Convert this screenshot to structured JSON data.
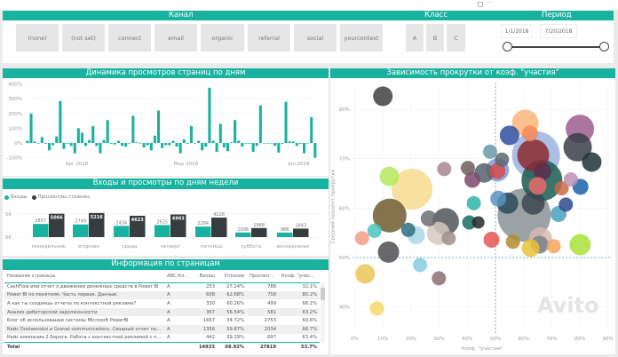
{
  "top_icons": [
    "focus-mode-icon",
    "more-options-icon"
  ],
  "filters": {
    "channel": {
      "title": "Канал",
      "options": [
        "(none)",
        "(not set)",
        "connect",
        "email",
        "organic",
        "referral",
        "social",
        "yourcontext"
      ]
    },
    "class": {
      "title": "Класс",
      "options": [
        "A",
        "B",
        "C"
      ]
    },
    "period": {
      "title": "Период",
      "start": "1/1/2018",
      "end": "7/20/2018",
      "slider_start": 0,
      "slider_end": 1
    }
  },
  "colors": {
    "accent": "#19b2a0",
    "dark": "#363c3f"
  },
  "daily_chart": {
    "title": "Динамика просмотров страниц по дням",
    "chart_data": {
      "type": "bar",
      "ylim": [
        -100,
        400
      ],
      "yticks": [
        "400%",
        "300%",
        "200%",
        "100%",
        "0%",
        "-100%"
      ],
      "xtick_labels": [
        {
          "label": "Apr 2018",
          "date": "2018-04-01"
        },
        {
          "label": "May 2018",
          "date": "2018-05-01"
        },
        {
          "label": "Jun 2018",
          "date": "2018-06-01"
        }
      ],
      "x": [
        "2018-03-18",
        "2018-03-19",
        "2018-03-20",
        "2018-03-21",
        "2018-03-22",
        "2018-03-23",
        "2018-03-24",
        "2018-03-25",
        "2018-03-26",
        "2018-03-27",
        "2018-03-28",
        "2018-03-29",
        "2018-03-30",
        "2018-03-31",
        "2018-04-01",
        "2018-04-02",
        "2018-04-03",
        "2018-04-04",
        "2018-04-05",
        "2018-04-06",
        "2018-04-07",
        "2018-04-08",
        "2018-04-09",
        "2018-04-10",
        "2018-04-11",
        "2018-04-12",
        "2018-04-13",
        "2018-04-14",
        "2018-04-15",
        "2018-04-16",
        "2018-04-17",
        "2018-04-18",
        "2018-04-19",
        "2018-04-20",
        "2018-04-21",
        "2018-04-22",
        "2018-04-23",
        "2018-04-24",
        "2018-04-25",
        "2018-04-26",
        "2018-04-27",
        "2018-04-28",
        "2018-04-29",
        "2018-04-30",
        "2018-05-01",
        "2018-05-02",
        "2018-05-03",
        "2018-05-04",
        "2018-05-05",
        "2018-05-06",
        "2018-05-07",
        "2018-05-08",
        "2018-05-09",
        "2018-05-10",
        "2018-05-11",
        "2018-05-12",
        "2018-05-13",
        "2018-05-14",
        "2018-05-15",
        "2018-05-16",
        "2018-05-17",
        "2018-05-18",
        "2018-05-19",
        "2018-05-20",
        "2018-05-21",
        "2018-05-22",
        "2018-05-23",
        "2018-05-24",
        "2018-05-25",
        "2018-05-26",
        "2018-05-27",
        "2018-05-28",
        "2018-05-29",
        "2018-05-30",
        "2018-05-31",
        "2018-06-01",
        "2018-06-02",
        "2018-06-03",
        "2018-06-04",
        "2018-06-05"
      ],
      "values": [
        15,
        200,
        10,
        0,
        40,
        -5,
        -50,
        -15,
        45,
        285,
        -40,
        -5,
        -20,
        -70,
        100,
        70,
        -20,
        20,
        115,
        -20,
        -70,
        20,
        155,
        -5,
        -10,
        15,
        -20,
        -25,
        0,
        185,
        5,
        0,
        -30,
        -15,
        -50,
        50,
        220,
        -35,
        -15,
        -15,
        15,
        -25,
        -70,
        25,
        -5,
        115,
        0,
        15,
        -50,
        -25,
        375,
        15,
        -60,
        130,
        -30,
        -55,
        5,
        155,
        15,
        -25,
        0,
        -5,
        -60,
        -20,
        255,
        0,
        0,
        0,
        -20,
        -65,
        -5,
        280,
        10,
        10,
        -20,
        -5,
        -70,
        0,
        175,
        -100
      ],
      "color": "#19b2a0"
    }
  },
  "weekday_chart": {
    "title": "Входы и просмотры по дням недели",
    "chart_data": {
      "type": "bar",
      "ylim": [
        0,
        5500
      ],
      "yticks": [
        "5K",
        "0K"
      ],
      "categories": [
        "понедельник",
        "вторник",
        "среда",
        "четверг",
        "пятница",
        "суббота",
        "воскресенье"
      ],
      "series": [
        {
          "name": "Входы",
          "color": "#19b2a0",
          "values": [
            2857,
            2749,
            2434,
            2615,
            2284,
            1006,
            988
          ]
        },
        {
          "name": "Просмотры страниц",
          "color": "#363c3f",
          "values": [
            5066,
            5216,
            4623,
            4903,
            4226,
            1968,
            1843
          ]
        }
      ],
      "legend": "top-left"
    }
  },
  "table": {
    "title": "Информация по страницам",
    "columns": [
      "Название страницы",
      "ABC Класс",
      "Входы",
      "Отказов",
      "Просмотры",
      "Коэф. \"участия\""
    ],
    "rows": [
      [
        "CashFlow или отчет о движении денежных средств в Power BI",
        "A",
        "253",
        "27.24%",
        "788",
        "32.1%"
      ],
      [
        "Power BI по понятиям. Часть первая. Данные.",
        "A",
        "608",
        "62.68%",
        "758",
        "80.2%"
      ],
      [
        "А как ты создаешь отчеты по контекстной рекламе?",
        "A",
        "330",
        "60.26%",
        "499",
        "66.1%"
      ],
      [
        "Анализ дебиторской задолженности",
        "A",
        "367",
        "56.54%",
        "581",
        "63.2%"
      ],
      [
        "Блог об использовании системы Microsoft PowerBI",
        "A",
        "1667",
        "34.72%",
        "2753",
        "60.6%"
      ],
      [
        "Кейс Dostaevskoi и Granat communications. Сводный отчет по инте...",
        "A",
        "1356",
        "59.87%",
        "2034",
        "66.7%"
      ],
      [
        "Кейс компании 2 Берега. Работа с контекстной рекламой с помощ...",
        "A",
        "442",
        "59.29%",
        "697",
        "63.4%"
      ]
    ],
    "total": [
      "Total",
      "",
      "14933",
      "68.92%",
      "27819",
      "53.7%"
    ]
  },
  "scatter": {
    "title": "Зависимость прокрутки от коэф. \"участия\"",
    "chart_data": {
      "type": "scatter",
      "xlabel": "Коэф. \"участия\"",
      "ylabel": "Средний процент прокрутки",
      "xlim": [
        0,
        90
      ],
      "ylim": [
        36,
        86
      ],
      "xticks": [
        "0%",
        "10%",
        "20%",
        "30%",
        "40%",
        "50%",
        "60%",
        "70%",
        "80%",
        "90%"
      ],
      "yticks": [
        "40%",
        "50%",
        "60%",
        "70%",
        "80%"
      ],
      "reference_lines": {
        "x": 50,
        "y": 50
      },
      "points": [
        {
          "x": 10,
          "y": 82.6,
          "size": 11,
          "color": "#3d3f42"
        },
        {
          "x": 60.6,
          "y": 77.2,
          "size": 15,
          "color": "#f9b57a"
        },
        {
          "x": 62.3,
          "y": 75.1,
          "size": 9,
          "color": "#f28a5a"
        },
        {
          "x": 55,
          "y": 74.7,
          "size": 11,
          "color": "#2f4fa0"
        },
        {
          "x": 80,
          "y": 76,
          "size": 16,
          "color": "#9b5d8e"
        },
        {
          "x": 79.2,
          "y": 72.3,
          "size": 16,
          "color": "#3a3e48"
        },
        {
          "x": 84.2,
          "y": 69.3,
          "size": 11,
          "color": "#1f3338"
        },
        {
          "x": 64.4,
          "y": 70.7,
          "size": 27,
          "color": "#9db3de"
        },
        {
          "x": 63.4,
          "y": 70.7,
          "size": 18,
          "color": "#8b2a2e"
        },
        {
          "x": 48.1,
          "y": 71.4,
          "size": 8,
          "color": "#6b98a8"
        },
        {
          "x": 52.3,
          "y": 69.8,
          "size": 8,
          "color": "#5a6770"
        },
        {
          "x": 50.7,
          "y": 67.7,
          "size": 13,
          "color": "#7a9ad8"
        },
        {
          "x": 50.7,
          "y": 67.5,
          "size": 9,
          "color": "#d94a4a"
        },
        {
          "x": 40.2,
          "y": 68.1,
          "size": 8,
          "color": "#6e5c5c"
        },
        {
          "x": 41.8,
          "y": 65.7,
          "size": 9,
          "color": "#7d4a6e"
        },
        {
          "x": 46,
          "y": 67.1,
          "size": 11,
          "color": "#55636b"
        },
        {
          "x": 31.8,
          "y": 67.9,
          "size": 8,
          "color": "#a88690"
        },
        {
          "x": 12.3,
          "y": 66.4,
          "size": 11,
          "color": "#b5e85c"
        },
        {
          "x": 20.4,
          "y": 63.8,
          "size": 23,
          "color": "#f7dc8f"
        },
        {
          "x": 12.4,
          "y": 58.5,
          "size": 19,
          "color": "#6e5a2e"
        },
        {
          "x": 66.5,
          "y": 65.6,
          "size": 23,
          "color": "#1a5c52"
        },
        {
          "x": 66.7,
          "y": 67.4,
          "size": 10,
          "color": "#5c2e4f"
        },
        {
          "x": 65,
          "y": 64.5,
          "size": 10,
          "color": "#e86a6a"
        },
        {
          "x": 73.5,
          "y": 64,
          "size": 8,
          "color": "#c96a44"
        },
        {
          "x": 76.8,
          "y": 65.8,
          "size": 8,
          "color": "#c08fb5"
        },
        {
          "x": 80.2,
          "y": 64.3,
          "size": 9,
          "color": "#1864a8"
        },
        {
          "x": 75,
          "y": 60.7,
          "size": 8,
          "color": "#2e4a8a"
        },
        {
          "x": 72.4,
          "y": 58.8,
          "size": 9,
          "color": "#4a9fbf"
        },
        {
          "x": 60.2,
          "y": 58.6,
          "size": 30,
          "color": "#8a9296"
        },
        {
          "x": 63.4,
          "y": 61,
          "size": 13,
          "color": "#3c4750"
        },
        {
          "x": 54.3,
          "y": 61,
          "size": 12,
          "color": "#2c4a5a"
        },
        {
          "x": 51,
          "y": 61.9,
          "size": 9,
          "color": "#5a93c4"
        },
        {
          "x": 42.3,
          "y": 61,
          "size": 8,
          "color": "#2cb5a6"
        },
        {
          "x": 32.3,
          "y": 57.3,
          "size": 15,
          "color": "#4d5559"
        },
        {
          "x": 26.3,
          "y": 57.9,
          "size": 9,
          "color": "#6b6d72"
        },
        {
          "x": 29.7,
          "y": 54.9,
          "size": 13,
          "color": "#d5c9bf"
        },
        {
          "x": 33.4,
          "y": 53.9,
          "size": 8,
          "color": "#9c9088"
        },
        {
          "x": 21.8,
          "y": 54.5,
          "size": 10,
          "color": "#a9d6e6"
        },
        {
          "x": 19,
          "y": 55.6,
          "size": 8,
          "color": "#2e6e83"
        },
        {
          "x": 7,
          "y": 55.4,
          "size": 8,
          "color": "#4cc6bd"
        },
        {
          "x": 2.6,
          "y": 53.9,
          "size": 8,
          "color": "#f2a086"
        },
        {
          "x": 12,
          "y": 51.1,
          "size": 12,
          "color": "#4f4f52"
        },
        {
          "x": 40.7,
          "y": 57.1,
          "size": 8,
          "color": "#1a6e64"
        },
        {
          "x": 43.9,
          "y": 57.1,
          "size": 7,
          "color": "#25292c"
        },
        {
          "x": 48.6,
          "y": 53.6,
          "size": 9,
          "color": "#e85555"
        },
        {
          "x": 56.2,
          "y": 53.2,
          "size": 8,
          "color": "#b08c2e"
        },
        {
          "x": 66,
          "y": 53.8,
          "size": 13,
          "color": "#d9b8b0"
        },
        {
          "x": 65.7,
          "y": 52.6,
          "size": 10,
          "color": "#7a7f8a"
        },
        {
          "x": 62.5,
          "y": 51.9,
          "size": 10,
          "color": "#eac23a"
        },
        {
          "x": 70.7,
          "y": 52.3,
          "size": 8,
          "color": "#f5a55a"
        },
        {
          "x": 80.1,
          "y": 52.6,
          "size": 12,
          "color": "#a9e13a"
        },
        {
          "x": 23.2,
          "y": 48.5,
          "size": 8,
          "color": "#86cde0"
        },
        {
          "x": 29.9,
          "y": 45.8,
          "size": 8,
          "color": "#8a7072"
        },
        {
          "x": 3.7,
          "y": 46.7,
          "size": 11,
          "color": "#eac557"
        },
        {
          "x": 7.9,
          "y": 39.7,
          "size": 8,
          "color": "#f5d86a"
        }
      ]
    }
  },
  "watermark": "Avito"
}
